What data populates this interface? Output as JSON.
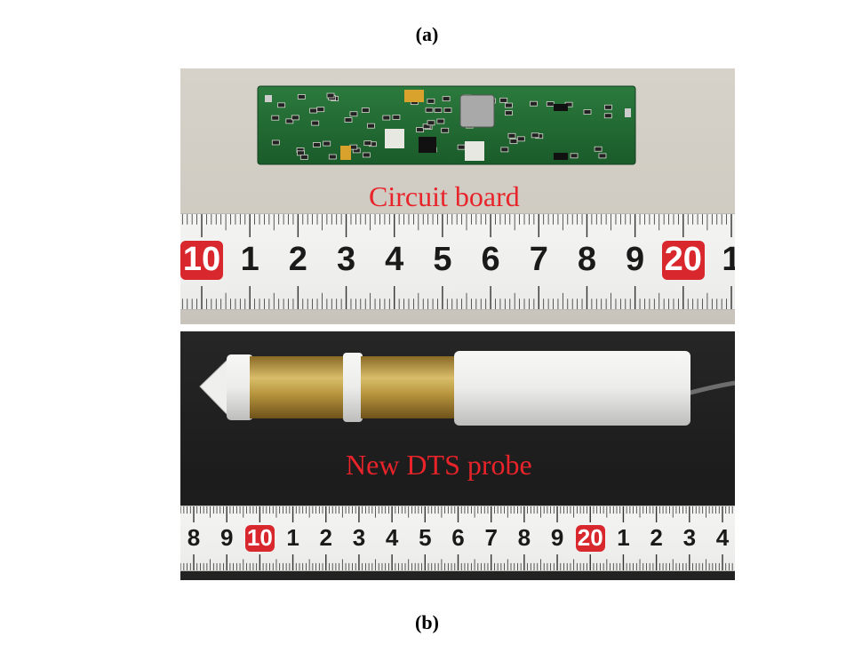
{
  "labels": {
    "a": "(a)",
    "b": "(b)"
  },
  "panel_a": {
    "caption": "Circuit board",
    "ruler_numbers": [
      "10",
      "1",
      "2",
      "3",
      "4",
      "5",
      "6",
      "7",
      "8",
      "9",
      "20",
      "1"
    ],
    "highlighted": [
      "10",
      "20"
    ]
  },
  "panel_b": {
    "caption": "New DTS probe",
    "ruler_numbers": [
      "8",
      "9",
      "10",
      "1",
      "2",
      "3",
      "4",
      "5",
      "6",
      "7",
      "8",
      "9",
      "20",
      "1",
      "2",
      "3",
      "4"
    ],
    "highlighted": [
      "10",
      "20"
    ]
  },
  "colors": {
    "caption": "#e8232a",
    "ruler_red": "#d9272e",
    "pcb": "#1f6b33",
    "brass": "#b8963e"
  }
}
